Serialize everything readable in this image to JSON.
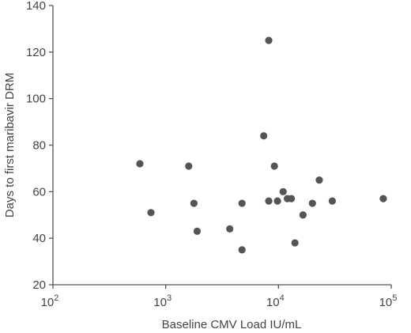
{
  "chart_data": {
    "type": "scatter",
    "title": "",
    "xlabel": "Baseline CMV Load IU/mL",
    "ylabel": "Days to first maribavir DRM",
    "x_scale": "log",
    "xlim": [
      100,
      100000
    ],
    "ylim": [
      20,
      140
    ],
    "x_ticks": [
      {
        "value": 100,
        "base": "10",
        "exp": "2"
      },
      {
        "value": 1000,
        "base": "10",
        "exp": "3"
      },
      {
        "value": 10000,
        "base": "10",
        "exp": "4"
      },
      {
        "value": 100000,
        "base": "10",
        "exp": "5"
      }
    ],
    "y_ticks": [
      20,
      40,
      60,
      80,
      100,
      120,
      140
    ],
    "grid": false,
    "legend": "none",
    "marker_color": "#555555",
    "points": [
      {
        "x": 590,
        "y": 72
      },
      {
        "x": 740,
        "y": 51
      },
      {
        "x": 1600,
        "y": 71
      },
      {
        "x": 1780,
        "y": 55
      },
      {
        "x": 1900,
        "y": 43
      },
      {
        "x": 3700,
        "y": 44
      },
      {
        "x": 4750,
        "y": 55
      },
      {
        "x": 4750,
        "y": 35
      },
      {
        "x": 7400,
        "y": 84
      },
      {
        "x": 8200,
        "y": 125
      },
      {
        "x": 8200,
        "y": 56
      },
      {
        "x": 9200,
        "y": 71
      },
      {
        "x": 9800,
        "y": 56
      },
      {
        "x": 11000,
        "y": 60
      },
      {
        "x": 12000,
        "y": 57
      },
      {
        "x": 13000,
        "y": 57
      },
      {
        "x": 14000,
        "y": 38
      },
      {
        "x": 16500,
        "y": 50
      },
      {
        "x": 20000,
        "y": 55
      },
      {
        "x": 23000,
        "y": 65
      },
      {
        "x": 30000,
        "y": 56
      },
      {
        "x": 85000,
        "y": 57
      }
    ]
  }
}
